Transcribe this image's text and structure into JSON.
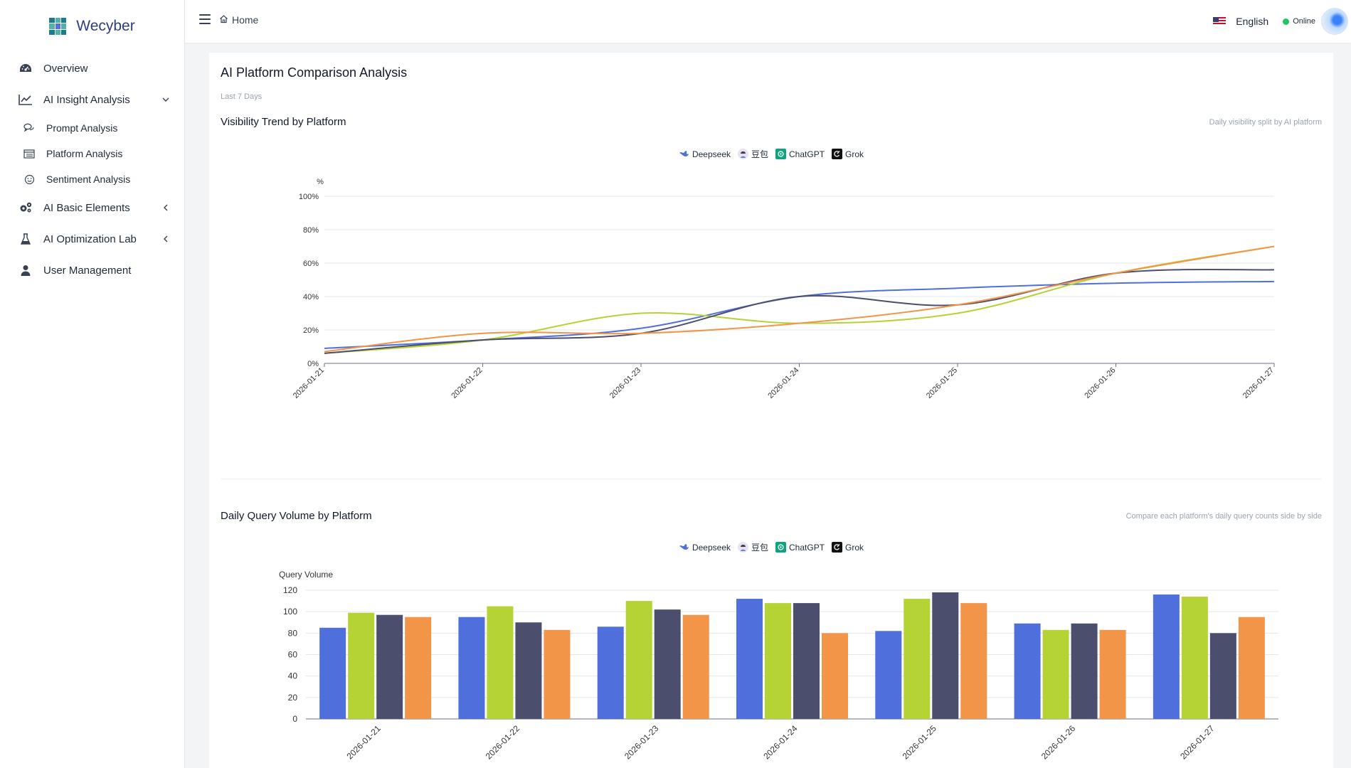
{
  "app": {
    "name": "Wecyber"
  },
  "sidebar": {
    "items": [
      {
        "label": "Overview",
        "icon": "dashboard-icon"
      },
      {
        "label": "AI Insight Analysis",
        "icon": "line-chart-icon",
        "expanded": true,
        "children": [
          {
            "label": "Prompt Analysis",
            "icon": "chat-icon"
          },
          {
            "label": "Platform Analysis",
            "icon": "list-icon"
          },
          {
            "label": "Sentiment Analysis",
            "icon": "smile-icon"
          }
        ]
      },
      {
        "label": "AI Basic Elements",
        "icon": "gears-icon",
        "expanded": false
      },
      {
        "label": "AI Optimization Lab",
        "icon": "flask-icon",
        "expanded": false
      },
      {
        "label": "User Management",
        "icon": "user-icon"
      }
    ]
  },
  "topbar": {
    "breadcrumb": "Home",
    "language": "English",
    "status": "Online"
  },
  "page": {
    "title": "AI Platform Comparison Analysis",
    "range": "Last 7 Days",
    "visibility": {
      "title": "Visibility Trend by Platform",
      "subtitle": "Daily visibility split by AI platform"
    },
    "volume": {
      "title": "Daily Query Volume by Platform",
      "subtitle": "Compare each platform's daily query counts side by side"
    }
  },
  "legend": [
    {
      "name": "Deepseek",
      "color": "#4e6fdc",
      "icon": "deepseek-whale-icon"
    },
    {
      "name": "豆包",
      "color": "#b5d334",
      "icon": "doubao-avatar-icon"
    },
    {
      "name": "ChatGPT",
      "color": "#4b4e6d",
      "icon": "chatgpt-logo-icon"
    },
    {
      "name": "Grok",
      "color": "#f29549",
      "icon": "grok-logo-icon"
    }
  ],
  "chart_data": [
    {
      "type": "line",
      "title": "Visibility Trend by Platform",
      "ylabel": "%",
      "ylim": [
        0,
        100
      ],
      "yticks": [
        "0%",
        "20%",
        "40%",
        "60%",
        "80%",
        "100%"
      ],
      "categories": [
        "2026-01-21",
        "2026-01-22",
        "2026-01-23",
        "2026-01-24",
        "2026-01-25",
        "2026-01-26",
        "2026-01-27"
      ],
      "series": [
        {
          "name": "Deepseek",
          "color": "#4e6fdc",
          "values": [
            9,
            14,
            21,
            40,
            45,
            48,
            49
          ]
        },
        {
          "name": "豆包",
          "color": "#b5d334",
          "values": [
            6,
            14,
            30,
            24,
            30,
            54,
            70
          ]
        },
        {
          "name": "ChatGPT",
          "color": "#4b4e6d",
          "values": [
            6,
            14,
            18,
            40,
            35,
            54,
            56
          ]
        },
        {
          "name": "Grok",
          "color": "#f29549",
          "values": [
            7,
            18,
            18,
            24,
            35,
            54,
            70
          ]
        }
      ],
      "legend": "top-center",
      "grid": true
    },
    {
      "type": "bar",
      "title": "Daily Query Volume by Platform",
      "ylabel": "Query Volume",
      "ylim": [
        0,
        120
      ],
      "yticks": [
        "0",
        "20",
        "40",
        "60",
        "80",
        "100",
        "120"
      ],
      "categories": [
        "2026-01-21",
        "2026-01-22",
        "2026-01-23",
        "2026-01-24",
        "2026-01-25",
        "2026-01-26",
        "2026-01-27"
      ],
      "series": [
        {
          "name": "Deepseek",
          "color": "#4e6fdc",
          "values": [
            85,
            95,
            86,
            112,
            82,
            89,
            116
          ]
        },
        {
          "name": "豆包",
          "color": "#b5d334",
          "values": [
            99,
            105,
            110,
            108,
            112,
            83,
            114
          ]
        },
        {
          "name": "ChatGPT",
          "color": "#4b4e6d",
          "values": [
            97,
            90,
            102,
            108,
            118,
            89,
            80
          ]
        },
        {
          "name": "Grok",
          "color": "#f29549",
          "values": [
            95,
            83,
            97,
            80,
            108,
            83,
            95
          ]
        }
      ],
      "legend": "top-center",
      "grid": true
    }
  ]
}
